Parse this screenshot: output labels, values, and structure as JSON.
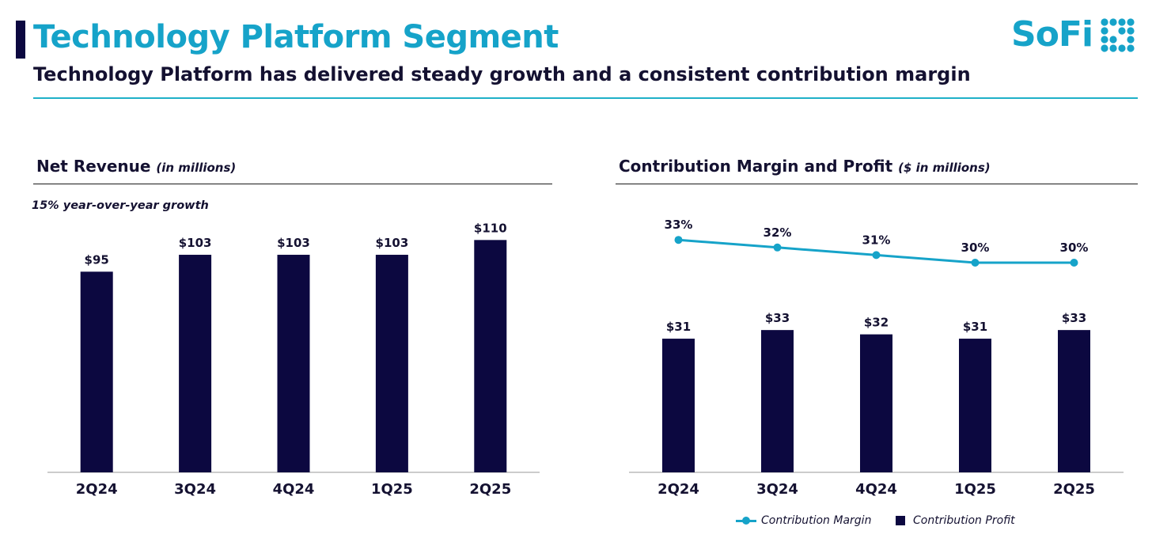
{
  "colors": {
    "navy": "#0c0840",
    "teal": "#16a3c9",
    "text": "#141131",
    "rule": "#1fb0c8"
  },
  "header": {
    "title": "Technology Platform Segment",
    "subtitle": "Technology Platform has delivered steady growth and a consistent contribution margin",
    "logo_text": "SoFi",
    "logo_icon": "sofi-dot-grid-icon"
  },
  "left_panel": {
    "title": "Net Revenue",
    "title_unit": "(in millions)",
    "note": "15% year-over-year growth"
  },
  "right_panel": {
    "title": "Contribution Margin and Profit",
    "title_unit": "($ in millions)"
  },
  "legend": {
    "margin_label": "Contribution Margin",
    "profit_label": "Contribution Profit"
  },
  "chart_data": [
    {
      "type": "bar",
      "title": "Net Revenue (in millions)",
      "categories": [
        "2Q24",
        "3Q24",
        "4Q24",
        "1Q25",
        "2Q25"
      ],
      "values": [
        95,
        103,
        103,
        103,
        110
      ],
      "labels": [
        "$95",
        "$103",
        "$103",
        "$103",
        "$110"
      ],
      "ylim": [
        0,
        112
      ],
      "xlabel": "",
      "ylabel": "",
      "grid": false,
      "legend": "none"
    },
    {
      "type": "bar",
      "title": "Contribution Margin and Profit ($ in millions)",
      "categories": [
        "2Q24",
        "3Q24",
        "4Q24",
        "1Q25",
        "2Q25"
      ],
      "series": [
        {
          "name": "Contribution Profit",
          "type": "bar",
          "values": [
            31,
            33,
            32,
            31,
            33
          ],
          "labels": [
            "$31",
            "$33",
            "$32",
            "$31",
            "$33"
          ]
        },
        {
          "name": "Contribution Margin",
          "type": "line",
          "values": [
            33,
            32,
            31,
            30,
            30
          ],
          "labels": [
            "33%",
            "32%",
            "31%",
            "30%",
            "30%"
          ]
        }
      ],
      "ylim": [
        0,
        40
      ],
      "xlabel": "",
      "ylabel": "",
      "grid": false,
      "legend": "bottom-right"
    }
  ]
}
